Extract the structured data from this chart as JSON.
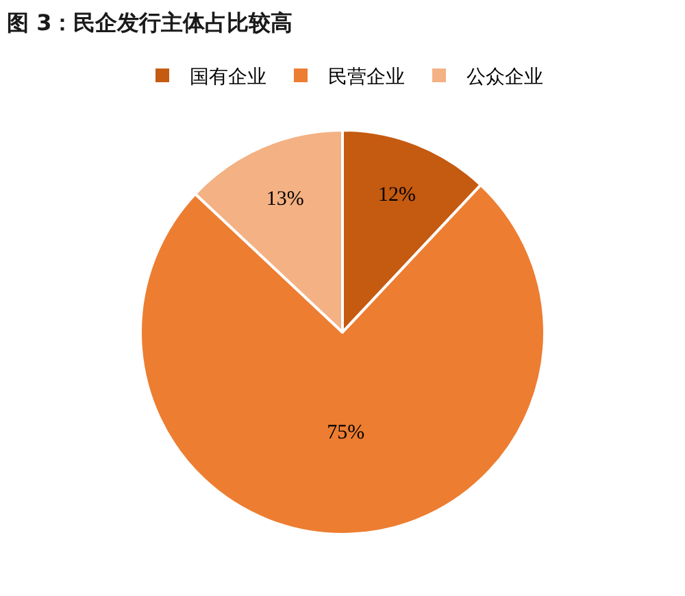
{
  "chart_data": {
    "type": "pie",
    "title": "图 3：民企发行主体占比较高",
    "categories": [
      "国有企业",
      "民营企业",
      "公众企业"
    ],
    "values": [
      12,
      75,
      13
    ],
    "value_labels": [
      "12%",
      "75%",
      "13%"
    ],
    "colors": [
      "#c55a11",
      "#ed7d31",
      "#f4b183"
    ],
    "legend": "top"
  }
}
